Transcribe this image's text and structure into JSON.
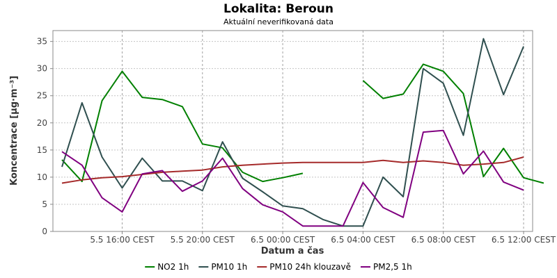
{
  "chart_data": {
    "type": "line",
    "title": "Lokalita: Beroun",
    "subtitle": "Aktuální neverifikovaná data",
    "xlabel": "Datum a čas",
    "ylabel": "Koncentrace [µg·m⁻³]",
    "ylim": [
      0,
      37
    ],
    "yticks": [
      0,
      5,
      10,
      15,
      20,
      25,
      30,
      35
    ],
    "x_hours_from_start": [
      0,
      1,
      2,
      3,
      4,
      5,
      6,
      7,
      8,
      9,
      10,
      11,
      12,
      13,
      14,
      15,
      16,
      17,
      18,
      19,
      20,
      21,
      22,
      23,
      24
    ],
    "x_range_hours": [
      -0.45,
      23.45
    ],
    "xticks": [
      {
        "label": "5.5 16:00 CEST",
        "hour": 3
      },
      {
        "label": "5.5 20:00 CEST",
        "hour": 7
      },
      {
        "label": "6.5 00:00 CEST",
        "hour": 11
      },
      {
        "label": "6.5 04:00 CEST",
        "hour": 15
      },
      {
        "label": "6.5 08:00 CEST",
        "hour": 19
      },
      {
        "label": "6.5 12:00 CEST",
        "hour": 23
      }
    ],
    "grid": true,
    "legend_position": "bottom",
    "series": [
      {
        "name": "NO2 1h",
        "color": "#008000",
        "values": [
          13.2,
          9.2,
          24.1,
          29.5,
          24.7,
          24.3,
          23.0,
          16.1,
          15.4,
          10.9,
          9.2,
          9.9,
          10.7,
          null,
          null,
          27.8,
          24.5,
          25.3,
          30.8,
          29.5,
          25.4,
          10.1,
          15.3,
          9.9,
          8.9
        ]
      },
      {
        "name": "PM10 1h",
        "color": "#2F4F4F",
        "values": [
          11.9,
          23.7,
          13.7,
          8.0,
          13.5,
          9.3,
          9.3,
          7.5,
          16.5,
          9.8,
          7.3,
          4.7,
          4.2,
          2.2,
          1.0,
          1.0,
          10.0,
          6.4,
          30.0,
          27.3,
          17.7,
          35.5,
          25.2,
          34.1,
          null
        ]
      },
      {
        "name": "PM10 24h klouzavě",
        "color": "#A52A2A",
        "values": [
          8.9,
          9.5,
          9.9,
          10.1,
          10.5,
          10.9,
          11.1,
          11.3,
          11.9,
          12.2,
          12.4,
          12.6,
          12.7,
          12.7,
          12.7,
          12.7,
          13.1,
          12.7,
          13.0,
          12.7,
          12.2,
          12.4,
          12.7,
          13.7,
          null
        ]
      },
      {
        "name": "PM2,5 1h",
        "color": "#800080",
        "values": [
          14.7,
          12.2,
          6.2,
          3.6,
          10.6,
          11.2,
          7.4,
          9.3,
          13.5,
          7.9,
          4.9,
          3.6,
          1.0,
          1.0,
          1.0,
          9.0,
          4.4,
          2.6,
          18.3,
          18.6,
          10.6,
          14.8,
          9.1,
          7.6,
          null
        ]
      }
    ]
  }
}
